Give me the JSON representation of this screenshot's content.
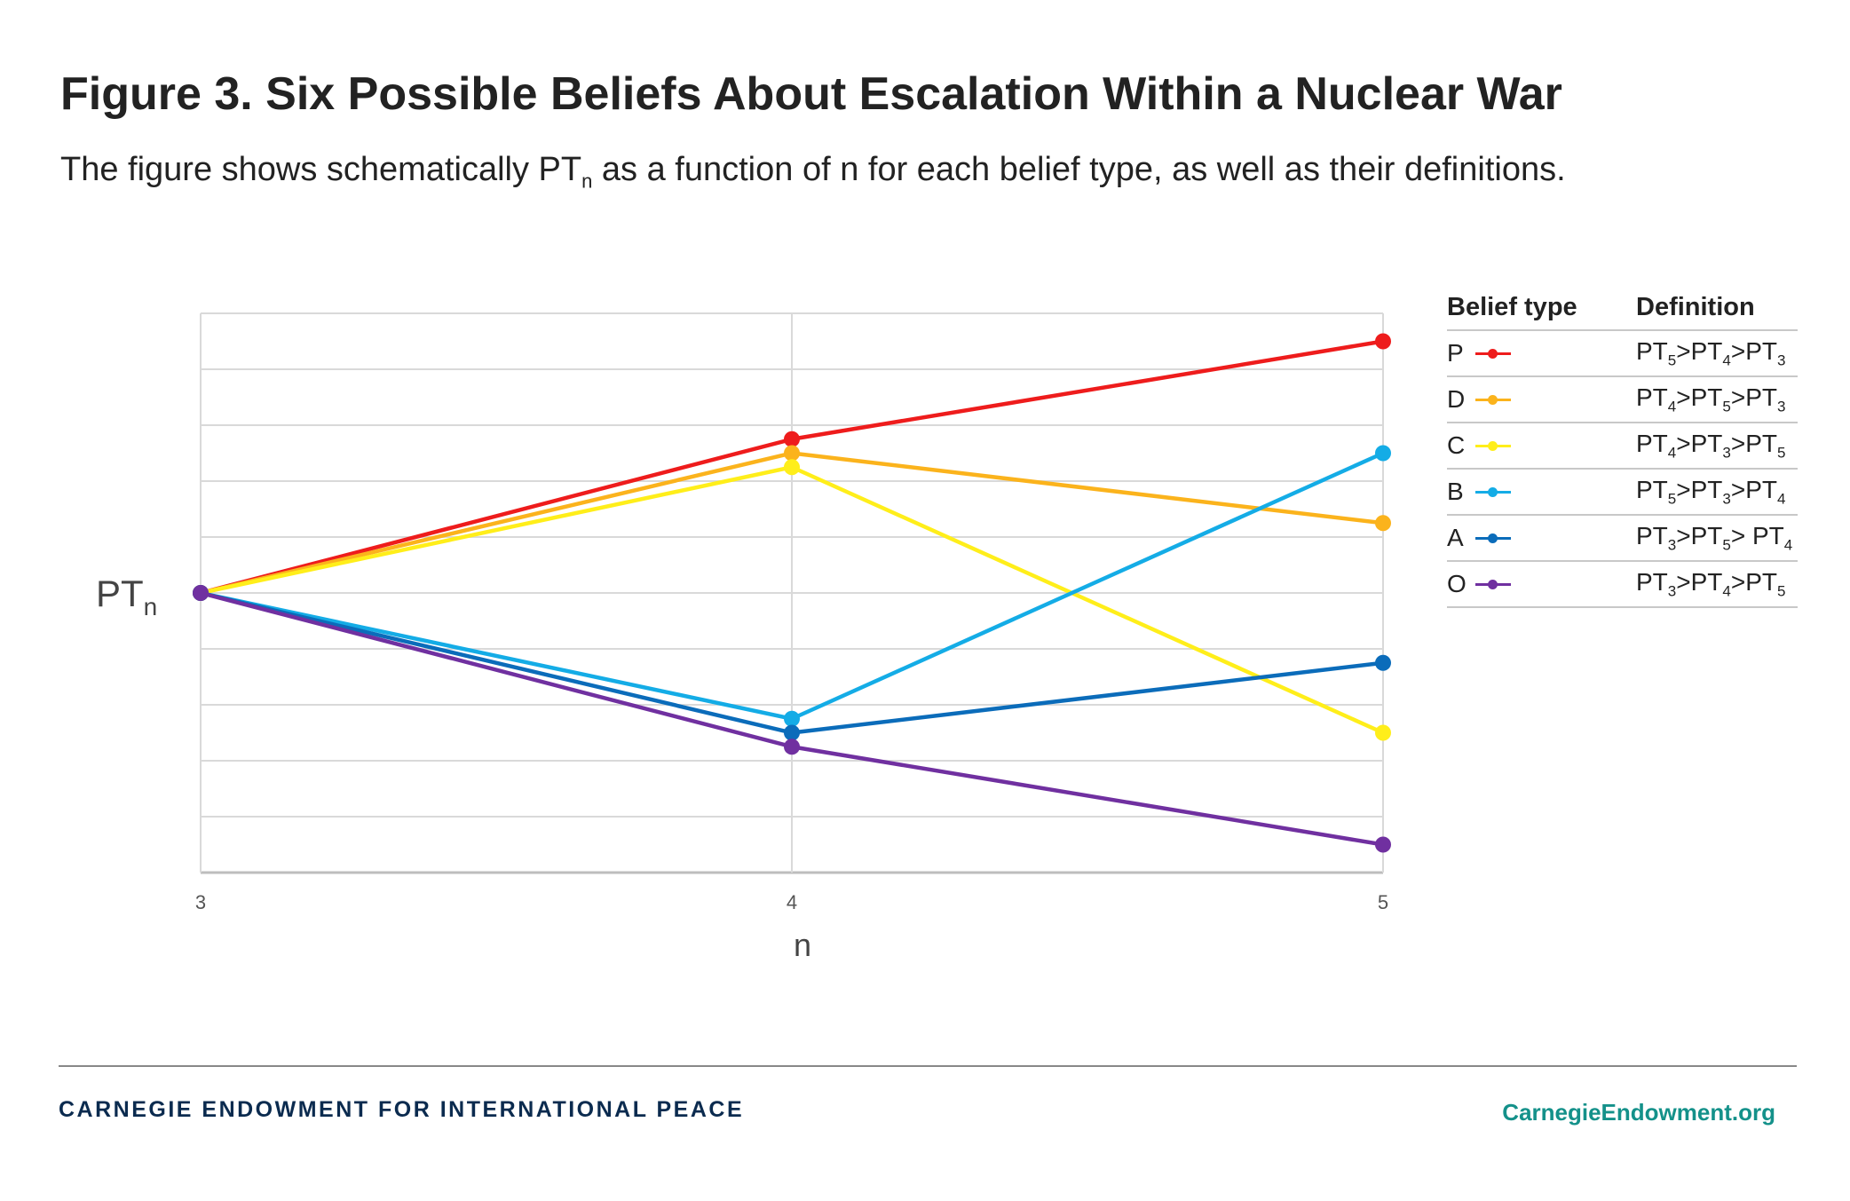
{
  "title": "Figure 3. Six Possible Beliefs About Escalation Within a Nuclear War",
  "subtitle": {
    "before": "The figure shows schematically PT",
    "sub": "n",
    "after": " as a function of n for each belief type, as well as their definitions."
  },
  "chart_data": {
    "type": "line",
    "title": "Figure 3. Six Possible Beliefs About Escalation Within a Nuclear War",
    "xlabel": "n",
    "ylabel": "PTn",
    "x": [
      3,
      4,
      5
    ],
    "ylim": [
      0,
      10
    ],
    "grid": true,
    "series": [
      {
        "name": "P",
        "color": "#ee1c1c",
        "values": [
          5,
          7.75,
          9.5
        ]
      },
      {
        "name": "D",
        "color": "#fbb31c",
        "values": [
          5,
          7.5,
          6.25
        ]
      },
      {
        "name": "C",
        "color": "#ffee1a",
        "values": [
          5,
          7.25,
          2.5
        ]
      },
      {
        "name": "B",
        "color": "#14ace6",
        "values": [
          5,
          2.75,
          7.5
        ]
      },
      {
        "name": "A",
        "color": "#0b6cba",
        "values": [
          5,
          2.5,
          3.75
        ]
      },
      {
        "name": "O",
        "color": "#7030a0",
        "values": [
          5,
          2.25,
          0.5
        ]
      }
    ]
  },
  "axis": {
    "ylabel_main": "PT",
    "ylabel_sub": "n",
    "xlabel": "n",
    "xticks": [
      "3",
      "4",
      "5"
    ]
  },
  "legend": {
    "col1": "Belief type",
    "col2": "Definition",
    "rows": [
      {
        "letter": "P",
        "color": "#ee1c1c",
        "def": [
          [
            "PT",
            "5"
          ],
          [
            ">PT",
            "4"
          ],
          [
            ">PT",
            "3"
          ]
        ]
      },
      {
        "letter": "D",
        "color": "#fbb31c",
        "def": [
          [
            "PT",
            "4"
          ],
          [
            ">PT",
            "5"
          ],
          [
            ">PT",
            "3"
          ]
        ]
      },
      {
        "letter": "C",
        "color": "#ffee1a",
        "def": [
          [
            "PT",
            "4"
          ],
          [
            ">PT",
            "3"
          ],
          [
            ">PT",
            "5"
          ]
        ]
      },
      {
        "letter": "B",
        "color": "#14ace6",
        "def": [
          [
            "PT",
            "5"
          ],
          [
            ">PT",
            "3"
          ],
          [
            ">PT",
            "4"
          ]
        ]
      },
      {
        "letter": "A",
        "color": "#0b6cba",
        "def": [
          [
            "PT",
            "3"
          ],
          [
            ">PT",
            "5"
          ],
          [
            "> PT",
            "4"
          ]
        ]
      },
      {
        "letter": "O",
        "color": "#7030a0",
        "def": [
          [
            "PT",
            "3"
          ],
          [
            ">PT",
            "4"
          ],
          [
            ">PT",
            "5"
          ]
        ]
      }
    ]
  },
  "footer": {
    "org": "CARNEGIE ENDOWMENT FOR INTERNATIONAL PEACE",
    "url": "CarnegieEndowment.org"
  }
}
